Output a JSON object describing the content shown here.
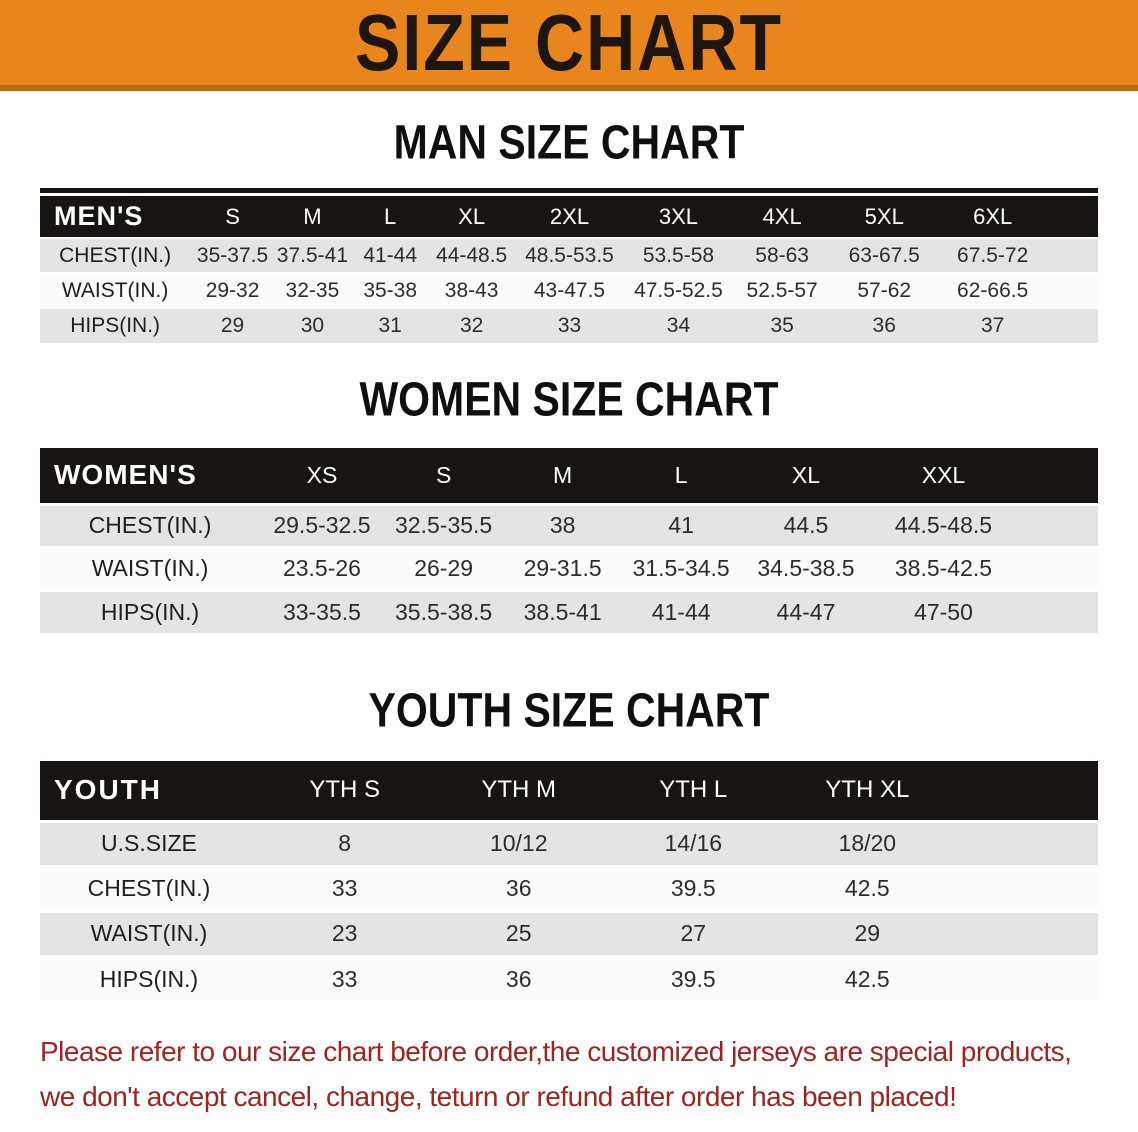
{
  "banner": {
    "title": "SIZE CHART",
    "bg_color": "#E8851C",
    "accent_dark": "#BF6C11"
  },
  "sections": [
    {
      "heading": "MAN SIZE CHART",
      "table": {
        "header_label": "MEN'S",
        "columns": [
          "S",
          "M",
          "L",
          "XL",
          "2XL",
          "3XL",
          "4XL",
          "5XL",
          "6XL"
        ],
        "rows": [
          {
            "label": "CHEST(IN.)",
            "values": [
              "35-37.5",
              "37.5-41",
              "41-44",
              "44-48.5",
              "48.5-53.5",
              "53.5-58",
              "58-63",
              "63-67.5",
              "67.5-72"
            ]
          },
          {
            "label": "WAIST(IN.)",
            "values": [
              "29-32",
              "32-35",
              "35-38",
              "38-43",
              "43-47.5",
              "47.5-52.5",
              "52.5-57",
              "57-62",
              "62-66.5"
            ]
          },
          {
            "label": "HIPS(IN.)",
            "values": [
              "29",
              "30",
              "31",
              "32",
              "33",
              "34",
              "35",
              "36",
              "37"
            ]
          }
        ]
      }
    },
    {
      "heading": "WOMEN SIZE CHART",
      "table": {
        "header_label": "WOMEN'S",
        "columns": [
          "XS",
          "S",
          "M",
          "L",
          "XL",
          "XXL"
        ],
        "rows": [
          {
            "label": "CHEST(IN.)",
            "values": [
              "29.5-32.5",
              "32.5-35.5",
              "38",
              "41",
              "44.5",
              "44.5-48.5"
            ]
          },
          {
            "label": "WAIST(IN.)",
            "values": [
              "23.5-26",
              "26-29",
              "29-31.5",
              "31.5-34.5",
              "34.5-38.5",
              "38.5-42.5"
            ]
          },
          {
            "label": "HIPS(IN.)",
            "values": [
              "33-35.5",
              "35.5-38.5",
              "38.5-41",
              "41-44",
              "44-47",
              "47-50"
            ]
          }
        ]
      }
    },
    {
      "heading": "YOUTH SIZE CHART",
      "table": {
        "header_label": "YOUTH",
        "columns": [
          "YTH S",
          "YTH M",
          "YTH L",
          "YTH XL"
        ],
        "rows": [
          {
            "label": "U.S.SIZE",
            "values": [
              "8",
              "10/12",
              "14/16",
              "18/20"
            ]
          },
          {
            "label": "CHEST(IN.)",
            "values": [
              "33",
              "36",
              "39.5",
              "42.5"
            ]
          },
          {
            "label": "WAIST(IN.)",
            "values": [
              "23",
              "25",
              "27",
              "29"
            ]
          },
          {
            "label": "HIPS(IN.)",
            "values": [
              "33",
              "36",
              "39.5",
              "42.5"
            ]
          }
        ]
      }
    }
  ],
  "footer": {
    "line1": "Please refer to our size chart before order,the customized jerseys are special products,",
    "line2": "we don't accept cancel, change, teturn or refund after order has been placed!",
    "color": "#9E2420"
  }
}
